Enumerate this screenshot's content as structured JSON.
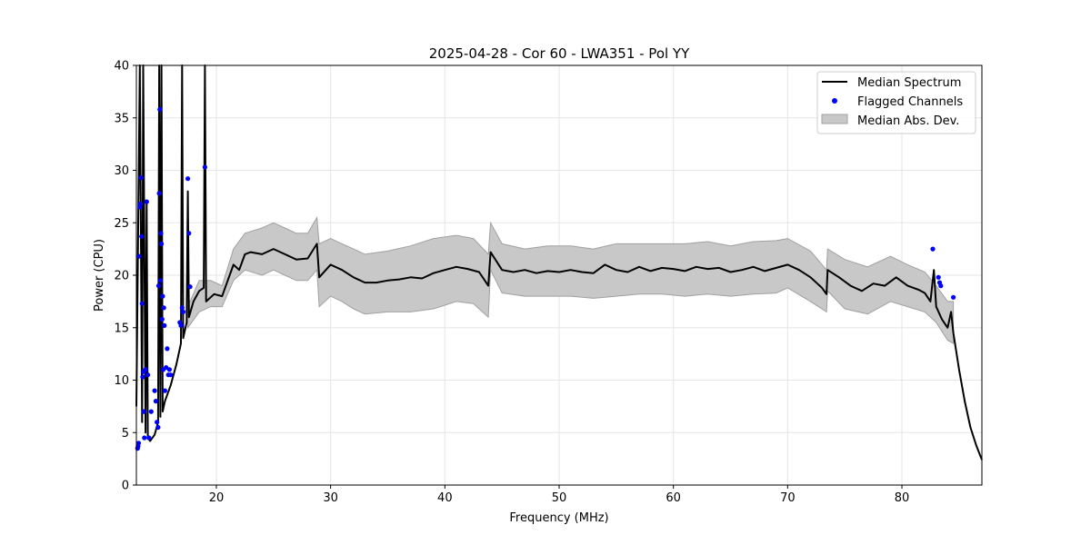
{
  "chart_data": {
    "type": "line",
    "title": "2025-04-28 - Cor 60 - LWA351 - Pol YY",
    "xlabel": "Frequency (MHz)",
    "ylabel": "Power (CPU)",
    "xlim": [
      13.0,
      87.0
    ],
    "ylim": [
      0,
      40
    ],
    "xticks": [
      20,
      30,
      40,
      50,
      60,
      70,
      80
    ],
    "yticks": [
      0,
      5,
      10,
      15,
      20,
      25,
      30,
      35,
      40
    ],
    "grid": true,
    "legend_position": "top-right",
    "legend": [
      "Median Spectrum",
      "Flagged Channels",
      "Median Abs. Dev."
    ],
    "colors": {
      "median": "#000000",
      "flagged": "#0000ff",
      "band_fill": "#c8c8c8",
      "band_edge": "#a0a0a0",
      "grid": "#e5e5e5"
    },
    "series": [
      {
        "name": "Median Spectrum",
        "kind": "line",
        "points": [
          [
            13.0,
            7.5
          ],
          [
            13.3,
            40
          ],
          [
            13.5,
            6.0
          ],
          [
            13.6,
            40
          ],
          [
            13.8,
            5.0
          ],
          [
            13.9,
            27
          ],
          [
            14.0,
            4.5
          ],
          [
            14.2,
            4.2
          ],
          [
            14.6,
            4.8
          ],
          [
            14.9,
            6.0
          ],
          [
            15.0,
            40
          ],
          [
            15.1,
            6.5
          ],
          [
            15.2,
            40
          ],
          [
            15.3,
            7.0
          ],
          [
            15.5,
            8.0
          ],
          [
            16.0,
            9.5
          ],
          [
            16.5,
            11.5
          ],
          [
            16.9,
            13.5
          ],
          [
            17.0,
            40
          ],
          [
            17.1,
            14.0
          ],
          [
            17.4,
            15.5
          ],
          [
            17.5,
            28
          ],
          [
            17.6,
            16.0
          ],
          [
            18.0,
            17.5
          ],
          [
            18.5,
            18.5
          ],
          [
            18.9,
            18.8
          ],
          [
            19.0,
            40
          ],
          [
            19.1,
            17.5
          ],
          [
            19.8,
            18.2
          ],
          [
            20.5,
            18.0
          ],
          [
            21.0,
            19.5
          ],
          [
            21.5,
            21.0
          ],
          [
            22.0,
            20.5
          ],
          [
            22.5,
            22.0
          ],
          [
            23.0,
            22.2
          ],
          [
            24.0,
            22.0
          ],
          [
            25.0,
            22.5
          ],
          [
            26.0,
            22.0
          ],
          [
            27.0,
            21.5
          ],
          [
            28.0,
            21.6
          ],
          [
            28.8,
            23.0
          ],
          [
            29.0,
            19.8
          ],
          [
            30.0,
            21.0
          ],
          [
            31.0,
            20.5
          ],
          [
            32.0,
            19.8
          ],
          [
            33.0,
            19.3
          ],
          [
            34.0,
            19.3
          ],
          [
            35.0,
            19.5
          ],
          [
            36.0,
            19.6
          ],
          [
            37.0,
            19.8
          ],
          [
            38.0,
            19.7
          ],
          [
            39.0,
            20.2
          ],
          [
            40.0,
            20.5
          ],
          [
            41.0,
            20.8
          ],
          [
            42.0,
            20.6
          ],
          [
            43.0,
            20.3
          ],
          [
            43.8,
            19.0
          ],
          [
            44.0,
            22.2
          ],
          [
            45.0,
            20.5
          ],
          [
            46.0,
            20.3
          ],
          [
            47.0,
            20.5
          ],
          [
            48.0,
            20.2
          ],
          [
            49.0,
            20.4
          ],
          [
            50.0,
            20.3
          ],
          [
            51.0,
            20.5
          ],
          [
            52.0,
            20.3
          ],
          [
            53.0,
            20.2
          ],
          [
            54.0,
            21.0
          ],
          [
            55.0,
            20.5
          ],
          [
            56.0,
            20.3
          ],
          [
            57.0,
            20.8
          ],
          [
            58.0,
            20.4
          ],
          [
            59.0,
            20.7
          ],
          [
            60.0,
            20.6
          ],
          [
            61.0,
            20.4
          ],
          [
            62.0,
            20.8
          ],
          [
            63.0,
            20.6
          ],
          [
            64.0,
            20.7
          ],
          [
            65.0,
            20.3
          ],
          [
            66.0,
            20.5
          ],
          [
            67.0,
            20.8
          ],
          [
            68.0,
            20.4
          ],
          [
            69.0,
            20.7
          ],
          [
            70.0,
            21.0
          ],
          [
            71.0,
            20.5
          ],
          [
            72.0,
            19.8
          ],
          [
            73.0,
            18.8
          ],
          [
            73.4,
            18.2
          ],
          [
            73.5,
            20.5
          ],
          [
            74.5,
            19.8
          ],
          [
            75.5,
            19.0
          ],
          [
            76.5,
            18.5
          ],
          [
            77.5,
            19.2
          ],
          [
            78.5,
            19.0
          ],
          [
            79.5,
            19.8
          ],
          [
            80.5,
            19.0
          ],
          [
            81.5,
            18.6
          ],
          [
            82.0,
            18.3
          ],
          [
            82.5,
            17.5
          ],
          [
            82.8,
            20.5
          ],
          [
            83.0,
            17.0
          ],
          [
            83.5,
            15.8
          ],
          [
            84.0,
            15.0
          ],
          [
            84.3,
            16.5
          ],
          [
            84.5,
            14.5
          ],
          [
            85.0,
            11.0
          ],
          [
            85.5,
            8.0
          ],
          [
            86.0,
            5.5
          ],
          [
            86.5,
            3.8
          ],
          [
            87.0,
            2.4
          ]
        ]
      },
      {
        "name": "Median Abs. Dev.",
        "kind": "band",
        "points": [
          [
            17.5,
            15.0,
            17.0
          ],
          [
            18.5,
            16.5,
            19.5
          ],
          [
            19.5,
            17.0,
            19.5
          ],
          [
            20.5,
            17.0,
            19.0
          ],
          [
            21.5,
            19.5,
            22.5
          ],
          [
            22.5,
            20.5,
            24.0
          ],
          [
            24.0,
            20.0,
            24.5
          ],
          [
            25.0,
            20.5,
            25.0
          ],
          [
            26.0,
            20.0,
            24.5
          ],
          [
            27.0,
            19.5,
            24.0
          ],
          [
            28.0,
            19.5,
            24.0
          ],
          [
            28.8,
            20.5,
            25.5
          ],
          [
            29.0,
            17.0,
            23.0
          ],
          [
            30.0,
            18.0,
            23.5
          ],
          [
            31.0,
            17.5,
            23.0
          ],
          [
            32.0,
            16.8,
            22.5
          ],
          [
            33.0,
            16.3,
            22.0
          ],
          [
            35.0,
            16.5,
            22.3
          ],
          [
            37.0,
            16.5,
            22.8
          ],
          [
            39.0,
            16.8,
            23.5
          ],
          [
            41.0,
            17.5,
            23.8
          ],
          [
            42.5,
            17.3,
            23.5
          ],
          [
            43.8,
            16.0,
            22.0
          ],
          [
            44.0,
            20.5,
            25.0
          ],
          [
            45.0,
            18.3,
            23.0
          ],
          [
            47.0,
            18.0,
            22.5
          ],
          [
            49.0,
            18.0,
            22.8
          ],
          [
            51.0,
            18.0,
            22.8
          ],
          [
            53.0,
            17.8,
            22.5
          ],
          [
            55.0,
            18.0,
            23.0
          ],
          [
            57.0,
            18.2,
            23.0
          ],
          [
            59.0,
            18.2,
            23.0
          ],
          [
            61.0,
            18.0,
            23.0
          ],
          [
            63.0,
            18.2,
            23.2
          ],
          [
            65.0,
            18.0,
            22.8
          ],
          [
            67.0,
            18.2,
            23.2
          ],
          [
            69.0,
            18.3,
            23.3
          ],
          [
            70.0,
            18.8,
            23.5
          ],
          [
            72.0,
            17.5,
            22.3
          ],
          [
            73.4,
            16.5,
            20.5
          ],
          [
            73.5,
            18.5,
            22.5
          ],
          [
            75.0,
            16.8,
            21.5
          ],
          [
            77.0,
            16.3,
            20.8
          ],
          [
            79.0,
            17.5,
            21.8
          ],
          [
            80.5,
            17.0,
            21.0
          ],
          [
            82.0,
            16.5,
            20.3
          ],
          [
            83.0,
            15.5,
            19.0
          ],
          [
            84.0,
            13.8,
            17.5
          ],
          [
            84.5,
            13.5,
            17.5
          ]
        ]
      },
      {
        "name": "Flagged Channels",
        "kind": "scatter",
        "points": [
          [
            13.1,
            3.5
          ],
          [
            13.15,
            3.7
          ],
          [
            13.2,
            4.0
          ],
          [
            13.25,
            21.8
          ],
          [
            13.3,
            26.5
          ],
          [
            13.35,
            26.8
          ],
          [
            13.4,
            29.3
          ],
          [
            13.45,
            23.7
          ],
          [
            13.5,
            17.3
          ],
          [
            13.55,
            10.3
          ],
          [
            13.6,
            10.8
          ],
          [
            13.65,
            7.0
          ],
          [
            13.7,
            4.5
          ],
          [
            13.8,
            11.0
          ],
          [
            13.9,
            27.0
          ],
          [
            14.0,
            10.5
          ],
          [
            14.1,
            4.5
          ],
          [
            14.3,
            7.0
          ],
          [
            14.6,
            9.0
          ],
          [
            14.7,
            8.0
          ],
          [
            14.8,
            6.0
          ],
          [
            14.9,
            5.5
          ],
          [
            14.95,
            19.0
          ],
          [
            15.0,
            27.8
          ],
          [
            15.05,
            35.8
          ],
          [
            15.1,
            19.5
          ],
          [
            15.15,
            24.0
          ],
          [
            15.2,
            23.0
          ],
          [
            15.25,
            15.8
          ],
          [
            15.3,
            18.0
          ],
          [
            15.35,
            11.0
          ],
          [
            15.4,
            16.9
          ],
          [
            15.45,
            15.2
          ],
          [
            15.5,
            9.0
          ],
          [
            15.6,
            11.2
          ],
          [
            15.7,
            13.0
          ],
          [
            15.8,
            10.5
          ],
          [
            15.9,
            11.0
          ],
          [
            16.0,
            10.5
          ],
          [
            16.8,
            15.5
          ],
          [
            16.9,
            15.2
          ],
          [
            17.0,
            16.9
          ],
          [
            17.1,
            16.5
          ],
          [
            17.5,
            29.2
          ],
          [
            17.6,
            24.0
          ],
          [
            17.7,
            18.9
          ],
          [
            19.0,
            30.3
          ],
          [
            82.7,
            22.5
          ],
          [
            83.2,
            19.8
          ],
          [
            83.3,
            19.3
          ],
          [
            83.4,
            19.0
          ],
          [
            84.5,
            17.9
          ]
        ]
      }
    ]
  }
}
